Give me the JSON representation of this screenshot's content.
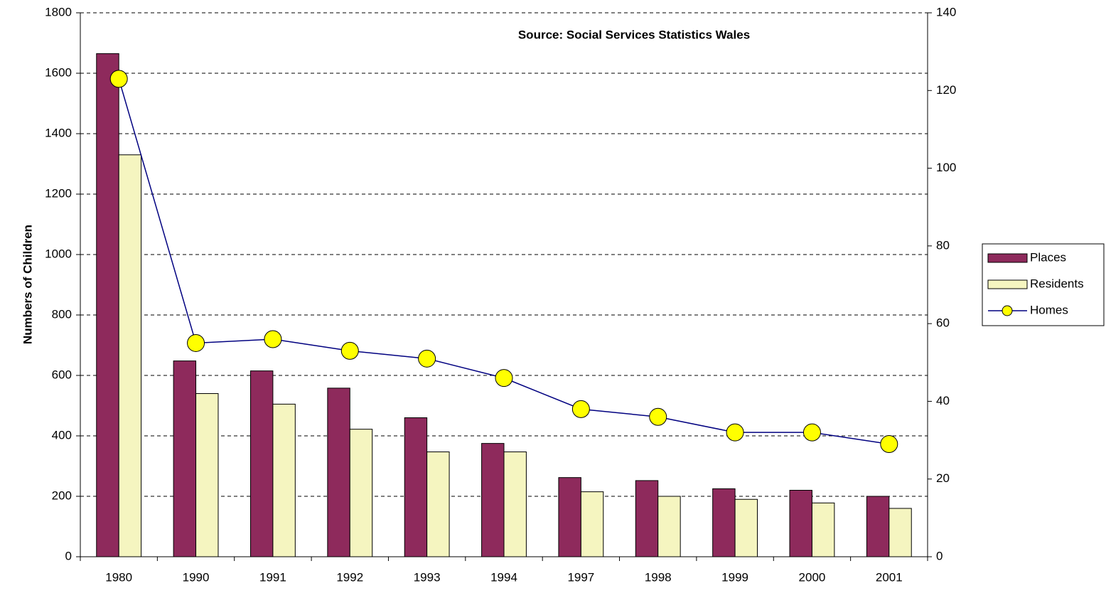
{
  "chart_data": {
    "type": "bar-line",
    "title": "Source: Social Services Statistics Wales",
    "ylabel": "Numbers of Children",
    "categories": [
      "1980",
      "1990",
      "1991",
      "1992",
      "1993",
      "1994",
      "1997",
      "1998",
      "1999",
      "2000",
      "2001"
    ],
    "series": [
      {
        "name": "Places",
        "type": "bar",
        "color": "#8e2a5c",
        "values": [
          1665,
          648,
          615,
          558,
          460,
          375,
          262,
          252,
          225,
          220,
          200
        ]
      },
      {
        "name": "Residents",
        "type": "bar",
        "color": "#f5f5c0",
        "values": [
          1330,
          540,
          505,
          422,
          347,
          347,
          215,
          200,
          190,
          178,
          160
        ]
      },
      {
        "name": "Homes",
        "type": "line",
        "axis": "y2",
        "color": "#000080",
        "marker_color": "#ffff00",
        "values": [
          123,
          55,
          56,
          53,
          51,
          46,
          38,
          36,
          32,
          32,
          29
        ]
      }
    ],
    "ylim": [
      0,
      1800
    ],
    "yticks": [
      0,
      200,
      400,
      600,
      800,
      1000,
      1200,
      1400,
      1600,
      1800
    ],
    "y2lim": [
      0,
      140
    ],
    "y2ticks": [
      0,
      20,
      40,
      60,
      80,
      100,
      120,
      140
    ],
    "grid": true,
    "legend": "right"
  }
}
